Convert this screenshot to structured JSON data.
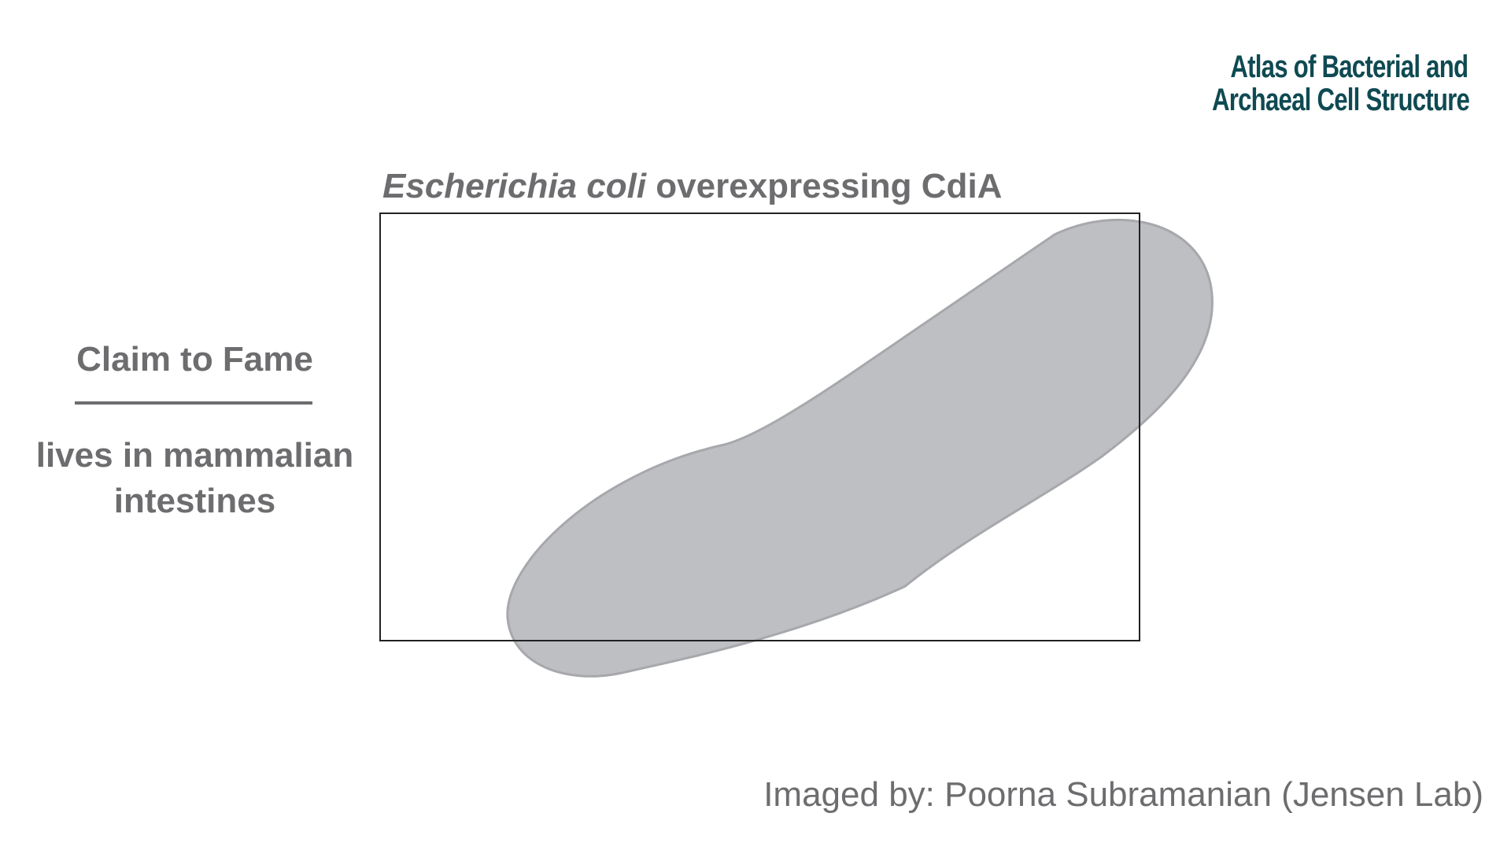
{
  "logo": {
    "line1": "Atlas of Bacterial and",
    "line2": "Archaeal Cell Structure"
  },
  "title": {
    "species_italic": "Escherichia coli",
    "rest": " overexpressing CdiA"
  },
  "sidebar": {
    "heading": "Claim to Fame",
    "text": "lives in mammalian intestines"
  },
  "credit": "Imaged by: Poorna Subramanian (Jensen Lab)",
  "colors": {
    "text_gray": "#6d6d70",
    "logo_teal": "#0f4a52",
    "cell_fill": "#bebfc3",
    "cell_stroke": "#a7a8ac",
    "frame_stroke": "#222222"
  }
}
